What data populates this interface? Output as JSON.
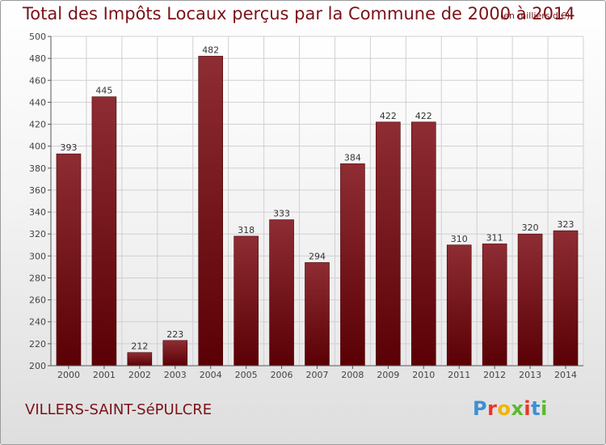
{
  "header": {
    "title": "Total des Impôts Locaux perçus par la Commune de 2000 à 2014",
    "unit_note": "(en milliers d'€)"
  },
  "footer": {
    "commune": "VILLERS-SAINT-SéPULCRE",
    "logo_letters": [
      "P",
      "r",
      "o",
      "x",
      "i",
      "t",
      "i"
    ],
    "logo_colors": [
      "#3e8fd4",
      "#e8362b",
      "#f0b400",
      "#5cb82e",
      "#e8362b",
      "#3e8fd4",
      "#5cb82e"
    ]
  },
  "colors": {
    "accent": "#7a1218",
    "bar_top": "#8e2d33",
    "bar_bottom": "#5a0005",
    "grid": "#d0d0d0"
  },
  "chart_data": {
    "type": "bar",
    "title": "Total des Impôts Locaux perçus par la Commune de 2000 à 2014",
    "subtitle": "(en milliers d'€)",
    "categories": [
      "2000",
      "2001",
      "2002",
      "2003",
      "2004",
      "2005",
      "2006",
      "2007",
      "2008",
      "2009",
      "2010",
      "2011",
      "2012",
      "2013",
      "2014"
    ],
    "values": [
      393,
      445,
      212,
      223,
      482,
      318,
      333,
      294,
      384,
      422,
      422,
      310,
      311,
      320,
      323
    ],
    "ylim": [
      200,
      500
    ],
    "ytick_step": 20,
    "grid": true,
    "xlabel": "",
    "ylabel": ""
  }
}
